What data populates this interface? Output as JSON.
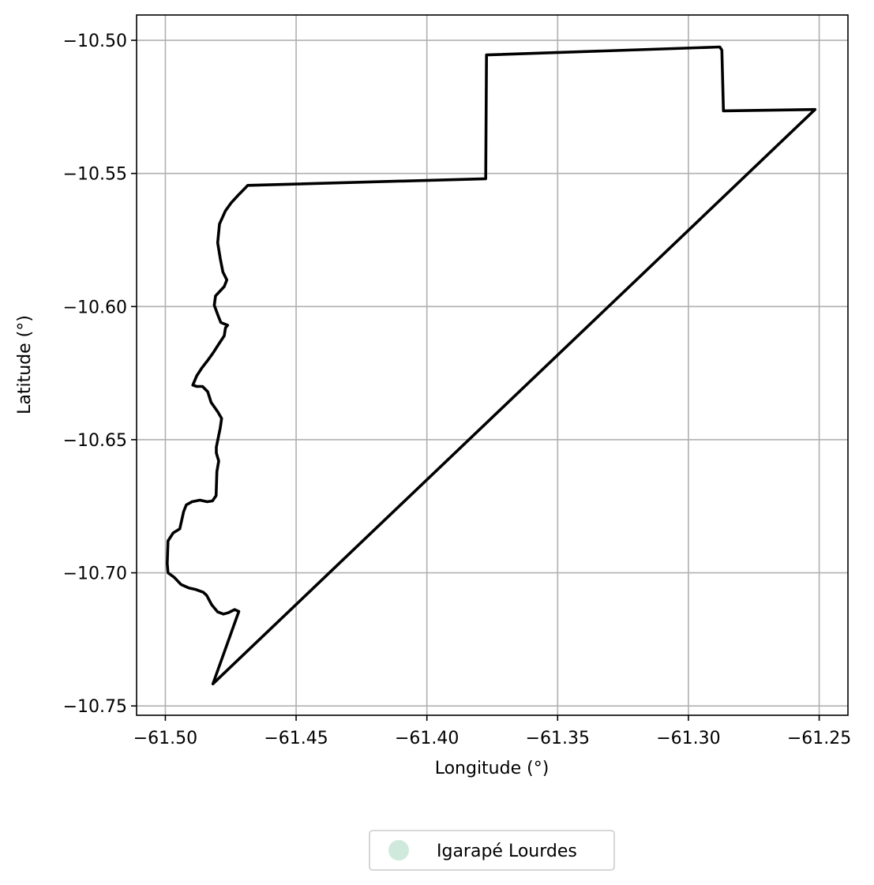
{
  "chart_data": {
    "type": "map",
    "xlabel": "Longitude (°)",
    "ylabel": "Latitude (°)",
    "xlim": [
      -61.511,
      -61.239
    ],
    "ylim": [
      -10.7535,
      -10.4905
    ],
    "xticks": [
      -61.5,
      -61.45,
      -61.4,
      -61.35,
      -61.3,
      -61.25
    ],
    "xtick_labels": [
      "−61.50",
      "−61.45",
      "−61.40",
      "−61.35",
      "−61.30",
      "−61.25"
    ],
    "yticks": [
      -10.5,
      -10.55,
      -10.6,
      -10.65,
      -10.7,
      -10.75
    ],
    "ytick_labels": [
      "−10.50",
      "−10.55",
      "−10.60",
      "−10.65",
      "−10.70",
      "−10.75"
    ],
    "grid": true,
    "legend_position": "bottom-center, below plot",
    "legend": [
      {
        "label": "Igarapé Lourdes",
        "color": "#cfeadd",
        "marker": "circle"
      }
    ],
    "boundary_color": "#000000",
    "boundary": [
      [
        -61.4818,
        -10.7417
      ],
      [
        -61.4719,
        -10.7145
      ],
      [
        -61.4735,
        -10.7138
      ],
      [
        -61.476,
        -10.715
      ],
      [
        -61.4778,
        -10.7155
      ],
      [
        -61.48,
        -10.7147
      ],
      [
        -61.4823,
        -10.712
      ],
      [
        -61.4842,
        -10.7085
      ],
      [
        -61.4855,
        -10.7073
      ],
      [
        -61.4883,
        -10.7063
      ],
      [
        -61.491,
        -10.7057
      ],
      [
        -61.494,
        -10.7044
      ],
      [
        -61.4966,
        -10.7017
      ],
      [
        -61.499,
        -10.7
      ],
      [
        -61.4993,
        -10.6965
      ],
      [
        -61.499,
        -10.688
      ],
      [
        -61.497,
        -10.685
      ],
      [
        -61.4945,
        -10.6835
      ],
      [
        -61.493,
        -10.677
      ],
      [
        -61.492,
        -10.6745
      ],
      [
        -61.4898,
        -10.6733
      ],
      [
        -61.4868,
        -10.6727
      ],
      [
        -61.484,
        -10.6733
      ],
      [
        -61.482,
        -10.673
      ],
      [
        -61.4806,
        -10.671
      ],
      [
        -61.4803,
        -10.662
      ],
      [
        -61.4796,
        -10.658
      ],
      [
        -61.4805,
        -10.655
      ],
      [
        -61.4805,
        -10.6528
      ],
      [
        -61.479,
        -10.6455
      ],
      [
        -61.4785,
        -10.642
      ],
      [
        -61.48,
        -10.6395
      ],
      [
        -61.4825,
        -10.636
      ],
      [
        -61.4838,
        -10.632
      ],
      [
        -61.4858,
        -10.63
      ],
      [
        -61.488,
        -10.63
      ],
      [
        -61.4895,
        -10.6295
      ],
      [
        -61.488,
        -10.626
      ],
      [
        -61.486,
        -10.623
      ],
      [
        -61.484,
        -10.6205
      ],
      [
        -61.4818,
        -10.6175
      ],
      [
        -61.4795,
        -10.614
      ],
      [
        -61.4775,
        -10.611
      ],
      [
        -61.477,
        -10.608
      ],
      [
        -61.4762,
        -10.607
      ],
      [
        -61.4788,
        -10.606
      ],
      [
        -61.48,
        -10.603
      ],
      [
        -61.4813,
        -10.5995
      ],
      [
        -61.4808,
        -10.596
      ],
      [
        -61.4775,
        -10.5925
      ],
      [
        -61.4765,
        -10.59
      ],
      [
        -61.478,
        -10.587
      ],
      [
        -61.479,
        -10.582
      ],
      [
        -61.48,
        -10.576
      ],
      [
        -61.4793,
        -10.569
      ],
      [
        -61.477,
        -10.564
      ],
      [
        -61.4748,
        -10.561
      ],
      [
        -61.472,
        -10.558
      ],
      [
        -61.4695,
        -10.5555
      ],
      [
        -61.4685,
        -10.5545
      ],
      [
        -61.3775,
        -10.552
      ],
      [
        -61.3772,
        -10.5055
      ],
      [
        -61.288,
        -10.5025
      ],
      [
        -61.2872,
        -10.5037
      ],
      [
        -61.2866,
        -10.5265
      ],
      [
        -61.2516,
        -10.526
      ],
      [
        -61.4818,
        -10.7417
      ]
    ]
  }
}
